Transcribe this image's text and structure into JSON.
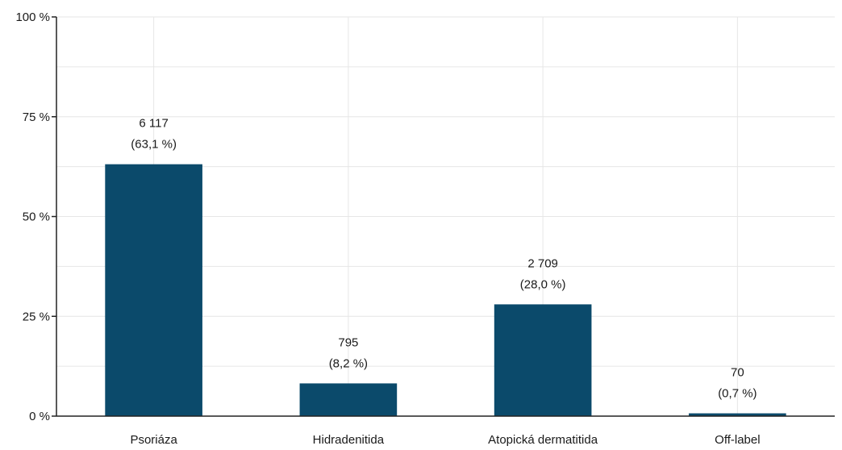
{
  "chart_data": {
    "type": "bar",
    "title": "",
    "xlabel": "",
    "ylabel": "",
    "ylim": [
      0,
      100
    ],
    "yticks": [
      0,
      25,
      50,
      75,
      100
    ],
    "ytick_labels": [
      "0 %",
      "25 %",
      "50 %",
      "75 %",
      "100 %"
    ],
    "grid": true,
    "categories": [
      "Psoriáza",
      "Hidradenitida",
      "Atopická dermatitida",
      "Off-label"
    ],
    "values": [
      63.1,
      8.2,
      28.0,
      0.7
    ],
    "count_labels": [
      "6 117",
      "795",
      "2 709",
      "70"
    ],
    "percent_labels": [
      "(63,1 %)",
      "(8,2 %)",
      "(28,0 %)",
      "(0,7 %)"
    ],
    "bar_color": "#0b4a6b"
  }
}
